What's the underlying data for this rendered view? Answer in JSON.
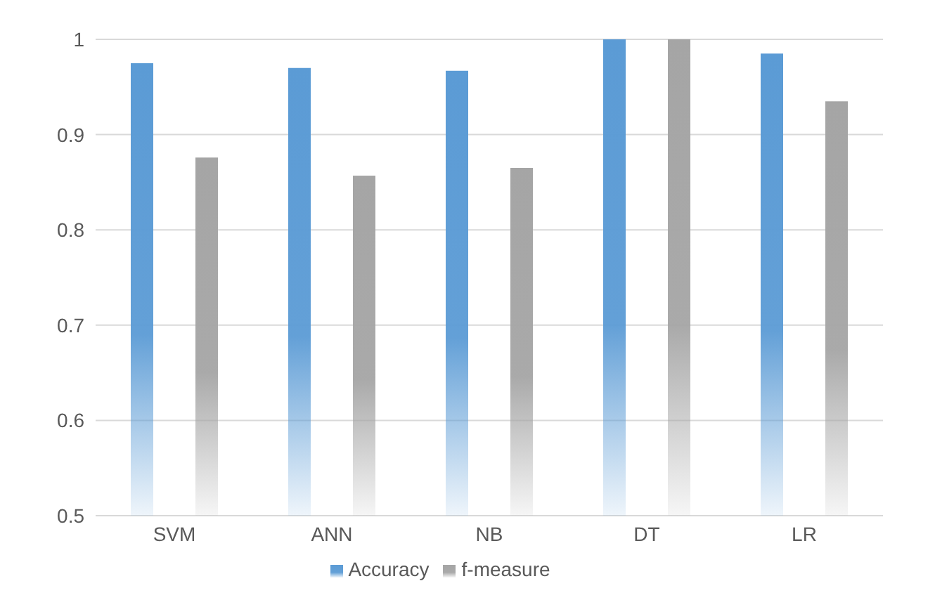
{
  "chart_data": {
    "type": "bar",
    "categories": [
      "SVM",
      "ANN",
      "NB",
      "DT",
      "LR"
    ],
    "series": [
      {
        "name": "Accuracy",
        "color": "#5b9bd5",
        "values": [
          0.975,
          0.97,
          0.967,
          1,
          0.985
        ]
      },
      {
        "name": "f-measure",
        "color": "#a5a5a5",
        "values": [
          0.876,
          0.857,
          0.865,
          1,
          0.935
        ]
      }
    ],
    "ylim": [
      0.5,
      1
    ],
    "yticks": [
      0.5,
      0.6,
      0.7,
      0.8,
      0.9,
      1
    ],
    "grid": "y",
    "legend": "bottom"
  }
}
